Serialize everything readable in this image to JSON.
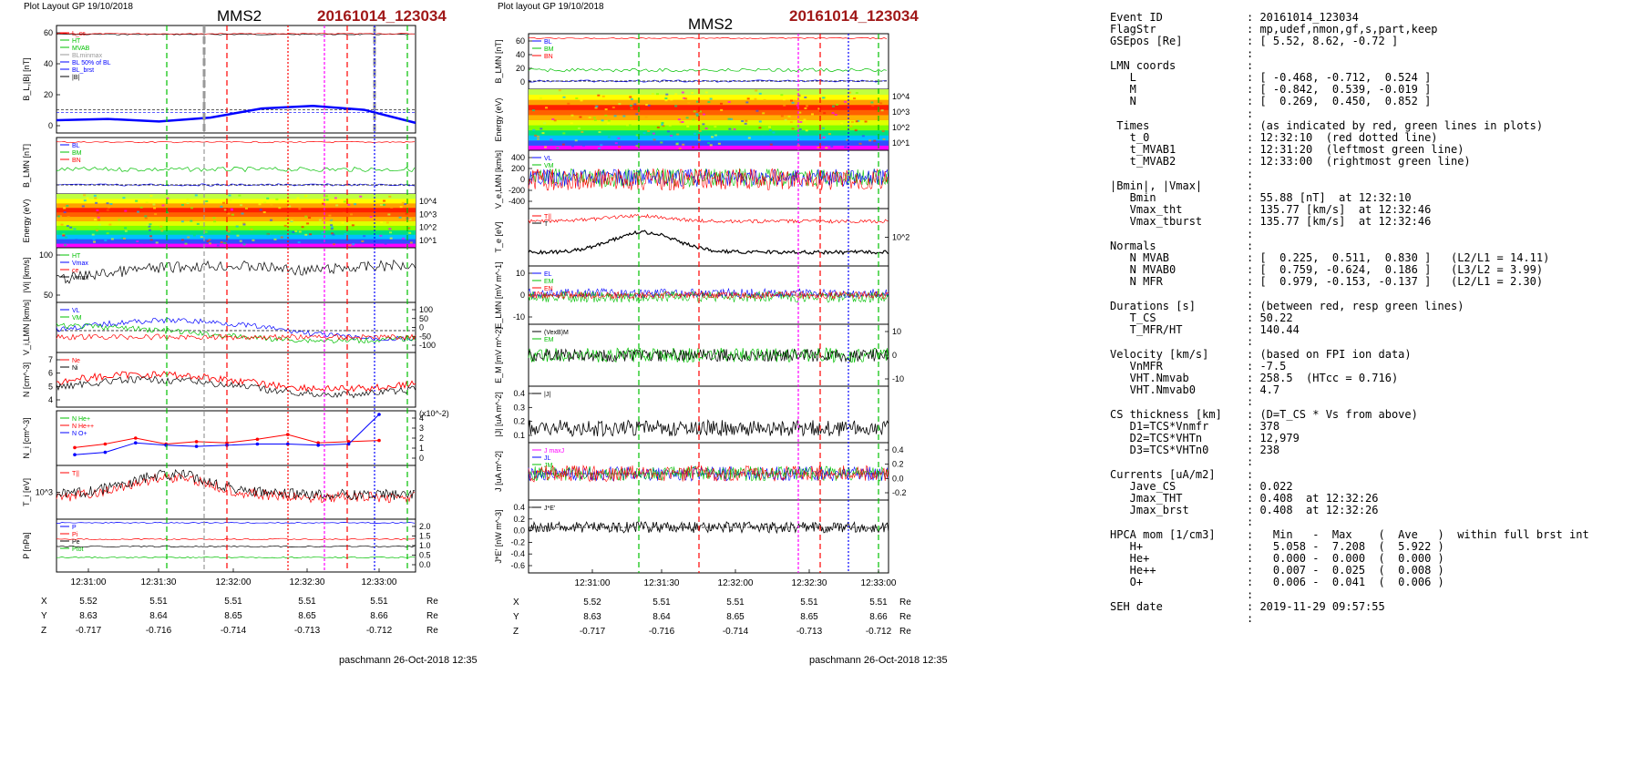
{
  "left": {
    "layout_label": "Plot Layout GP 19/10/2018",
    "spacecraft": "MMS2",
    "event": "20161014_123034",
    "footer": "paschmann 26-Oct-2018 12:35"
  },
  "right": {
    "layout_label": "Plot layout GP 19/10/2018",
    "spacecraft": "MMS2",
    "event": "20161014_123034",
    "footer": "paschmann 26-Oct-2018 12:35"
  },
  "chart_data": [
    {
      "type": "line",
      "panel": "left-1",
      "ylabel": "B_L,|B| [nT]",
      "ylim": [
        -15,
        62
      ],
      "yticks": [
        "60",
        "40",
        "20",
        "0"
      ],
      "legend": [
        "L_cs",
        "HT",
        "MVAB",
        "BLminmax",
        "BL 50% of BL",
        "BL_brst",
        "|B|"
      ],
      "series": [
        {
          "name": "|B|",
          "values": [
            58,
            58,
            58,
            58,
            58
          ]
        },
        {
          "name": "BL",
          "values": [
            -8,
            -7,
            -9,
            -6,
            1,
            3,
            0,
            -10
          ]
        }
      ]
    },
    {
      "type": "line",
      "panel": "left-2",
      "ylabel": "B_LMN [nT]",
      "legend": [
        "BL",
        "BM",
        "BN"
      ]
    },
    {
      "type": "heatmap",
      "panel": "left-3",
      "ylabel": "Energy (eV)",
      "yticks": [
        "10^4",
        "10^3",
        "10^2",
        "10^1"
      ]
    },
    {
      "type": "line",
      "panel": "left-4",
      "ylabel": "|Vi| [km/s]",
      "yticks": [
        "100",
        "50"
      ],
      "legend": [
        "HT",
        "Vmax",
        "ce",
        "Vmax"
      ]
    },
    {
      "type": "line",
      "panel": "left-5",
      "ylabel": "V_i,LMN [km/s]",
      "yticks": [
        "100",
        "50",
        "0",
        "-50",
        "-100"
      ],
      "legend": [
        "VL",
        "VM"
      ]
    },
    {
      "type": "line",
      "panel": "left-6",
      "ylabel": "N [cm^-3]",
      "yticks": [
        "7",
        "6",
        "5",
        "4"
      ],
      "legend": [
        "Ne",
        "Ni"
      ]
    },
    {
      "type": "line",
      "panel": "left-7",
      "ylabel": "N_i [cm^-3]",
      "y_multiplier": "(x10^-2)",
      "yticks": [
        "4",
        "3",
        "2",
        "1",
        "0"
      ],
      "legend": [
        "N He+",
        "N He++",
        "N O+"
      ],
      "series": [
        {
          "name": "N He++",
          "values": [
            1.2,
            1.5,
            2.0,
            1.5,
            1.7,
            1.6,
            1.9,
            2.3,
            1.6,
            1.7,
            1.8
          ]
        },
        {
          "name": "N O+",
          "values": [
            0.6,
            0.8,
            1.6,
            1.4,
            1.3,
            1.4,
            1.5,
            1.5,
            1.4,
            1.5,
            4.0
          ]
        }
      ]
    },
    {
      "type": "line",
      "panel": "left-8",
      "ylabel": "T_i [eV]",
      "yticks": [
        "10^3"
      ],
      "legend": [
        "T||"
      ]
    },
    {
      "type": "line",
      "panel": "left-9",
      "ylabel": "P [nPa]",
      "yticks": [
        "2.0",
        "1.5",
        "1.0",
        "0.5",
        "0.0"
      ],
      "legend": [
        "P",
        "Pi",
        "Pe",
        "Ptot"
      ]
    },
    {
      "type": "line",
      "panel": "right-1",
      "ylabel": "B_LMN [nT]",
      "yticks": [
        "60",
        "40",
        "20",
        "0"
      ],
      "legend": [
        "BL",
        "BM",
        "BN"
      ]
    },
    {
      "type": "heatmap",
      "panel": "right-2",
      "ylabel": "Energy (eV)",
      "yticks": [
        "10^4",
        "10^3",
        "10^2",
        "10^1"
      ]
    },
    {
      "type": "line",
      "panel": "right-3",
      "ylabel": "V_e,LMN [km/s]",
      "yticks": [
        "400",
        "200",
        "0",
        "-200",
        "-400"
      ],
      "legend": [
        "VL",
        "VM",
        "VN"
      ]
    },
    {
      "type": "line",
      "panel": "right-4",
      "ylabel": "T_e [eV]",
      "yticks": [
        "10^2"
      ],
      "legend": [
        "T||",
        "T"
      ]
    },
    {
      "type": "line",
      "panel": "right-5",
      "ylabel": "E_LMN [mV m^-1]",
      "yticks": [
        "10",
        "0",
        "-10"
      ],
      "legend": [
        "EL",
        "EM",
        "EN"
      ]
    },
    {
      "type": "line",
      "panel": "right-6",
      "ylabel": "E_M [mV m^-2]",
      "yticks": [
        "10",
        "0",
        "-10"
      ],
      "legend": [
        "(VexB)M",
        "EM"
      ]
    },
    {
      "type": "line",
      "panel": "right-7",
      "ylabel": "|J| [uA m^-2]",
      "yticks": [
        "0.4",
        "0.3",
        "0.2",
        "0.1"
      ],
      "legend": [
        "|J|"
      ]
    },
    {
      "type": "line",
      "panel": "right-8",
      "ylabel": "J [uA m^-2]",
      "yticks": [
        "0.4",
        "0.2",
        "0.0",
        "-0.2"
      ],
      "legend": [
        "J maxJ",
        "JL",
        "JM",
        "JN"
      ]
    },
    {
      "type": "line",
      "panel": "right-9",
      "ylabel": "J*E' [nW m^-3]",
      "yticks": [
        "0.4",
        "0.2",
        "0.0",
        "-0.2",
        "-0.4",
        "-0.6"
      ],
      "legend": [
        "J*E'"
      ]
    }
  ],
  "xaxis": {
    "ticks": [
      "12:31:00",
      "12:31:30",
      "12:32:00",
      "12:32:30",
      "12:33:00"
    ],
    "rows": [
      {
        "label": "X",
        "values": [
          "5.52",
          "5.51",
          "5.51",
          "5.51",
          "5.51"
        ],
        "unit": "Re"
      },
      {
        "label": "Y",
        "values": [
          "8.63",
          "8.64",
          "8.65",
          "8.65",
          "8.66"
        ],
        "unit": "Re"
      },
      {
        "label": "Z",
        "values": [
          "-0.717",
          "-0.716",
          "-0.714",
          "-0.713",
          "-0.712"
        ],
        "unit": "Re"
      }
    ]
  },
  "info": [
    {
      "k": "Event ID",
      "v": ": 20161014_123034"
    },
    {
      "k": "FlagStr",
      "v": ": mp,udef,nmon,gf,s,part,keep"
    },
    {
      "k": "GSEpos [Re]",
      "v": ": [ 5.52, 8.62, -0.72 ]"
    },
    {
      "k": "",
      "v": ":"
    },
    {
      "k": "LMN coords",
      "v": ":"
    },
    {
      "k": "   L",
      "v": ": [ -0.468, -0.712,  0.524 ]"
    },
    {
      "k": "   M",
      "v": ": [ -0.842,  0.539, -0.019 ]"
    },
    {
      "k": "   N",
      "v": ": [  0.269,  0.450,  0.852 ]"
    },
    {
      "k": "",
      "v": ":"
    },
    {
      "k": " Times",
      "v": ": (as indicated by red, green lines in plots)"
    },
    {
      "k": "   t_0",
      "v": ": 12:32:10  (red dotted line)"
    },
    {
      "k": "   t_MVAB1",
      "v": ": 12:31:20  (leftmost green line)"
    },
    {
      "k": "   t_MVAB2",
      "v": ": 12:33:00  (rightmost green line)"
    },
    {
      "k": "",
      "v": ":"
    },
    {
      "k": "|Bmin|, |Vmax|",
      "v": ":"
    },
    {
      "k": "   Bmin",
      "v": ": 55.88 [nT]  at 12:32:10"
    },
    {
      "k": "   Vmax_tht",
      "v": ": 135.77 [km/s]  at 12:32:46"
    },
    {
      "k": "   Vmax_tburst",
      "v": ": 135.77 [km/s]  at 12:32:46"
    },
    {
      "k": "",
      "v": ":"
    },
    {
      "k": "Normals",
      "v": ":"
    },
    {
      "k": "   N MVAB",
      "v": ": [  0.225,  0.511,  0.830 ]   (L2/L1 = 14.11)"
    },
    {
      "k": "   N MVAB0",
      "v": ": [  0.759, -0.624,  0.186 ]   (L3/L2 = 3.99)"
    },
    {
      "k": "   N MFR",
      "v": ": [  0.979, -0.153, -0.137 ]   (L2/L1 = 2.30)"
    },
    {
      "k": "",
      "v": ":"
    },
    {
      "k": "Durations [s]",
      "v": ": (between red, resp green lines)"
    },
    {
      "k": "   T_CS",
      "v": ": 50.22"
    },
    {
      "k": "   T_MFR/HT",
      "v": ": 140.44"
    },
    {
      "k": "",
      "v": ":"
    },
    {
      "k": "Velocity [km/s]",
      "v": ": (based on FPI ion data)"
    },
    {
      "k": "   VnMFR",
      "v": ": -7.5"
    },
    {
      "k": "   VHT.Nmvab",
      "v": ": 258.5  (HTcc = 0.716)"
    },
    {
      "k": "   VHT.Nmvab0",
      "v": ": 4.7"
    },
    {
      "k": "",
      "v": ":"
    },
    {
      "k": "CS thickness [km]",
      "v": ": (D=T_CS * Vs from above)"
    },
    {
      "k": "   D1=TCS*Vnmfr",
      "v": ": 378"
    },
    {
      "k": "   D2=TCS*VHTn",
      "v": ": 12,979"
    },
    {
      "k": "   D3=TCS*VHTn0",
      "v": ": 238"
    },
    {
      "k": "",
      "v": ":"
    },
    {
      "k": "Currents [uA/m2]",
      "v": ":"
    },
    {
      "k": "   Jave_CS",
      "v": ": 0.022"
    },
    {
      "k": "   Jmax_THT",
      "v": ": 0.408  at 12:32:26"
    },
    {
      "k": "   Jmax_brst",
      "v": ": 0.408  at 12:32:26"
    },
    {
      "k": "",
      "v": ":"
    },
    {
      "k": "HPCA mom [1/cm3]",
      "v": ":   Min   -  Max    (  Ave   )  within full brst int"
    },
    {
      "k": "   H+",
      "v": ":   5.058 -  7.208  (  5.922 )"
    },
    {
      "k": "   He+",
      "v": ":   0.000 -  0.000  (  0.000 )"
    },
    {
      "k": "   He++",
      "v": ":   0.007 -  0.025  (  0.008 )"
    },
    {
      "k": "   O+",
      "v": ":   0.006 -  0.041  (  0.006 )"
    },
    {
      "k": "",
      "v": ":"
    },
    {
      "k": "SEH date",
      "v": ": 2019-11-29 09:57:55"
    },
    {
      "k": "",
      "v": ":"
    }
  ],
  "colors": {
    "event": "#a01818",
    "red": "#ff0000",
    "green": "#00c000",
    "blue": "#0000ff",
    "magenta": "#ff00ff",
    "black": "#000000"
  }
}
